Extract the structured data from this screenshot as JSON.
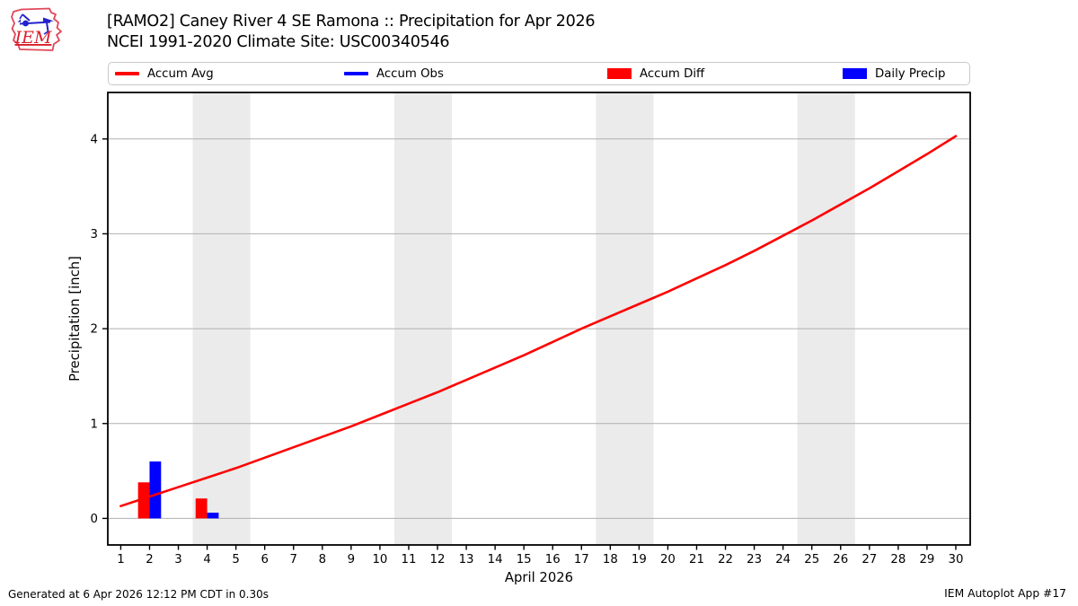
{
  "header": {
    "logo_text": "IEM"
  },
  "footer": {
    "generated": "Generated at 6 Apr 2026 12:12 PM CDT in 0.30s",
    "app": "IEM Autoplot App #17"
  },
  "chart_data": {
    "type": "line+bar",
    "title": "[RAMO2] Caney River 4 SE Ramona :: Precipitation for Apr 2026",
    "subtitle": "NCEI 1991-2020 Climate Site: USC00340546",
    "xlabel": "April 2026",
    "ylabel": "Precipitation [inch]",
    "xlim": [
      0.55,
      30.5
    ],
    "ylim": [
      -0.28,
      4.49
    ],
    "xticks": [
      1,
      2,
      3,
      4,
      5,
      6,
      7,
      8,
      9,
      10,
      11,
      12,
      13,
      14,
      15,
      16,
      17,
      18,
      19,
      20,
      21,
      22,
      23,
      24,
      25,
      26,
      27,
      28,
      29,
      30
    ],
    "yticks": [
      0,
      1,
      2,
      3,
      4
    ],
    "grid": "horizontal",
    "grid_color": "#b0b0b0",
    "frame_color": "#000000",
    "legend_position": "top",
    "weekend_shading": {
      "color": "#ebebeb",
      "day_ranges": [
        [
          3.5,
          5.5
        ],
        [
          10.5,
          12.5
        ],
        [
          17.5,
          19.5
        ],
        [
          24.5,
          26.5
        ]
      ]
    },
    "series": [
      {
        "name": "Accum Avg",
        "type": "line",
        "color": "#ff0000",
        "x": [
          1,
          2,
          3,
          4,
          5,
          6,
          7,
          8,
          9,
          10,
          11,
          12,
          13,
          14,
          15,
          16,
          17,
          18,
          19,
          20,
          21,
          22,
          23,
          24,
          25,
          26,
          27,
          28,
          29,
          30
        ],
        "y": [
          0.13,
          0.23,
          0.33,
          0.43,
          0.53,
          0.64,
          0.75,
          0.86,
          0.97,
          1.09,
          1.21,
          1.33,
          1.46,
          1.59,
          1.72,
          1.86,
          2.0,
          2.13,
          2.26,
          2.39,
          2.53,
          2.67,
          2.82,
          2.98,
          3.14,
          3.31,
          3.48,
          3.66,
          3.84,
          4.03
        ]
      },
      {
        "name": "Accum Obs",
        "type": "line",
        "color": "#0000ff",
        "x": [],
        "y": []
      },
      {
        "name": "Accum Diff",
        "type": "bar",
        "color": "#ff0000",
        "bar_span": [
          -0.4,
          0
        ],
        "x": [
          2,
          4
        ],
        "y": [
          0.38,
          0.21
        ]
      },
      {
        "name": "Daily Precip",
        "type": "bar",
        "color": "#0000ff",
        "bar_span": [
          0,
          0.4
        ],
        "x": [
          2,
          4
        ],
        "y": [
          0.6,
          0.06
        ]
      }
    ]
  }
}
